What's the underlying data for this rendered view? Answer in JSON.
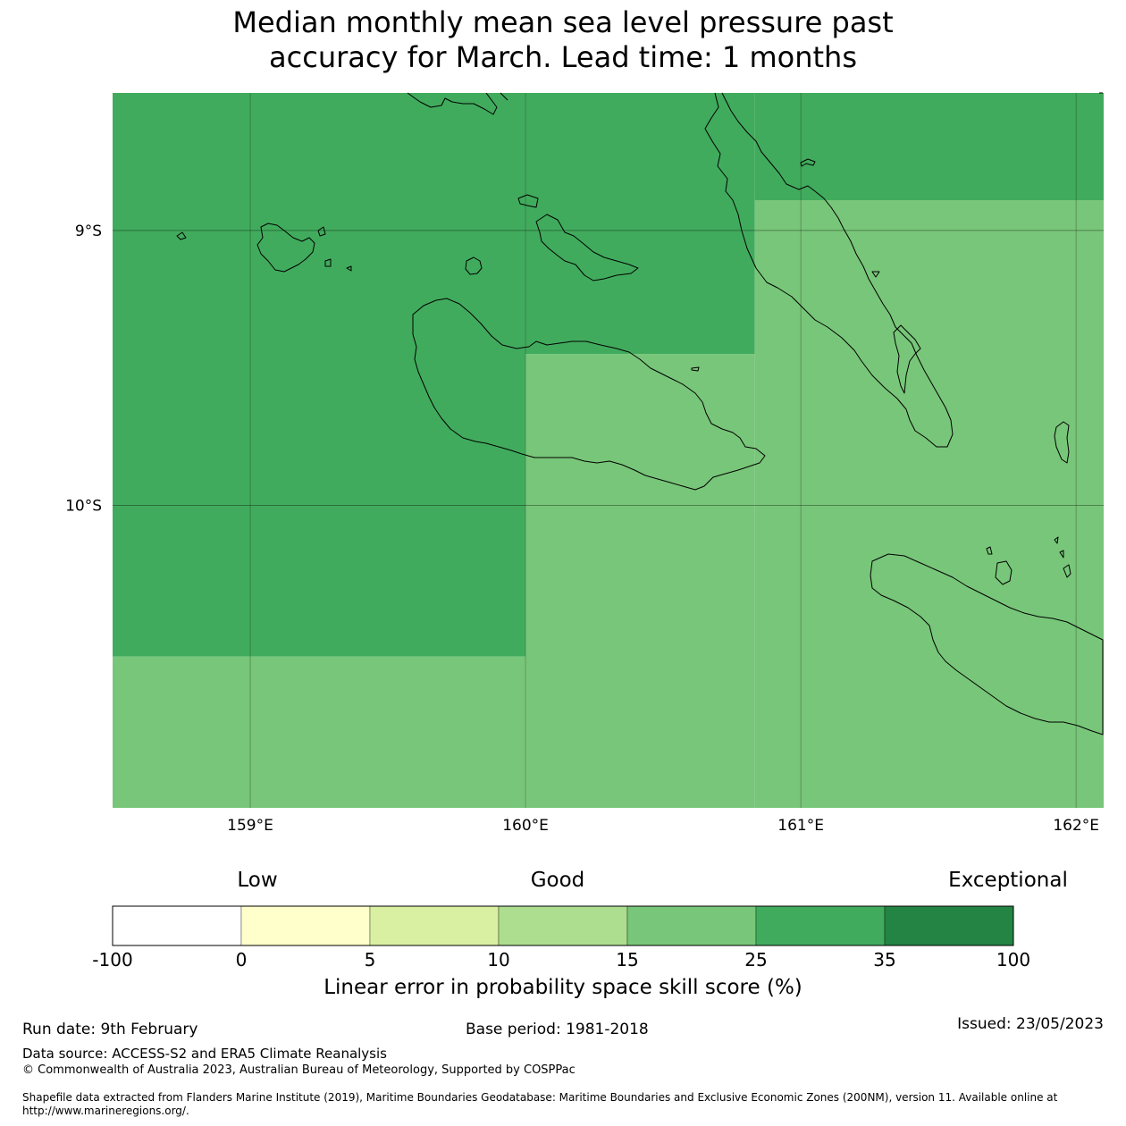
{
  "title": {
    "line1": "Median monthly mean sea level pressure past",
    "line2": "accuracy for March. Lead time: 1 months"
  },
  "map": {
    "lat_labels": [
      "9°S",
      "10°S"
    ],
    "lon_labels": [
      "159°E",
      "160°E",
      "161°E",
      "162°E"
    ],
    "extent": {
      "lon_min": 158.5,
      "lon_max": 162.1,
      "lat_max": -8.5,
      "lat_min": -11.1
    },
    "grid_cells": [
      {
        "lon": [
          158.5,
          160.0
        ],
        "lat": [
          -10.55,
          -8.5
        ],
        "category": "25-35",
        "color": "#41ab5d"
      },
      {
        "lon": [
          160.0,
          160.833
        ],
        "lat": [
          -9.45,
          -8.5
        ],
        "category": "25-35",
        "color": "#41ab5d"
      },
      {
        "lon": [
          160.833,
          162.1
        ],
        "lat": [
          -8.89,
          -8.5
        ],
        "category": "25-35",
        "color": "#41ab5d"
      },
      {
        "lon": [
          160.833,
          162.1
        ],
        "lat": [
          -11.1,
          -8.89
        ],
        "category": "15-25",
        "color": "#78c679"
      },
      {
        "lon": [
          160.0,
          160.833
        ],
        "lat": [
          -11.1,
          -9.45
        ],
        "category": "15-25",
        "color": "#78c679"
      },
      {
        "lon": [
          158.5,
          160.0
        ],
        "lat": [
          -11.1,
          -10.55
        ],
        "category": "15-25",
        "color": "#78c679"
      }
    ]
  },
  "colorbar": {
    "words": {
      "low": "Low",
      "good": "Good",
      "exceptional": "Exceptional"
    },
    "ticks": [
      "-100",
      "0",
      "5",
      "10",
      "15",
      "25",
      "35",
      "100"
    ],
    "colors": [
      "#ffffff",
      "#ffffcc",
      "#d9f0a3",
      "#addd8e",
      "#78c679",
      "#41ab5d",
      "#238443"
    ],
    "label": "Linear error in probability space skill score (%)"
  },
  "footer": {
    "run_date": "Run date: 9th February",
    "base_period": "Base period: 1981-2018",
    "issued": "Issued: 23/05/2023",
    "data_source": "Data source: ACCESS-S2 and ERA5 Climate Reanalysis",
    "copyright": "© Commonwealth of Australia 2023, Australian Bureau of Meteorology, Supported by COSPPac",
    "shapefile_line1": "Shapefile data extracted from Flanders Marine Institute (2019), Maritime Boundaries Geodatabase: Maritime Boundaries and Exclusive Economic Zones (200NM), version 11. Available online at",
    "shapefile_line2": "http://www.marineregions.org/."
  }
}
